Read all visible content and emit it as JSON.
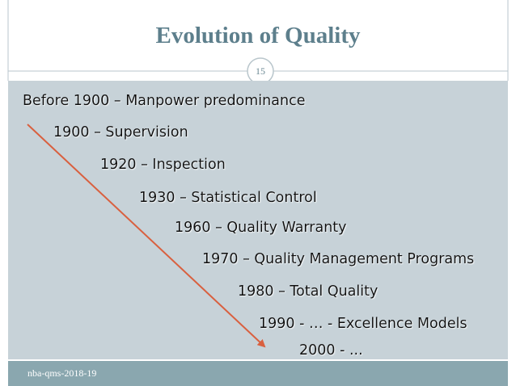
{
  "header": {
    "title": "Evolution of Quality",
    "slide_number": "15"
  },
  "items": [
    "Before 1900 – Manpower predominance",
    "1900 – Supervision",
    "1920 – Inspection",
    "1930 – Statistical Control",
    "1960 – Quality Warranty",
    "1970 – Quality Management Programs",
    "1980 – Total Quality",
    "1990 - … - Excellence Models",
    "2000 - ..."
  ],
  "footer": {
    "text": "nba-qms-2018-19"
  }
}
